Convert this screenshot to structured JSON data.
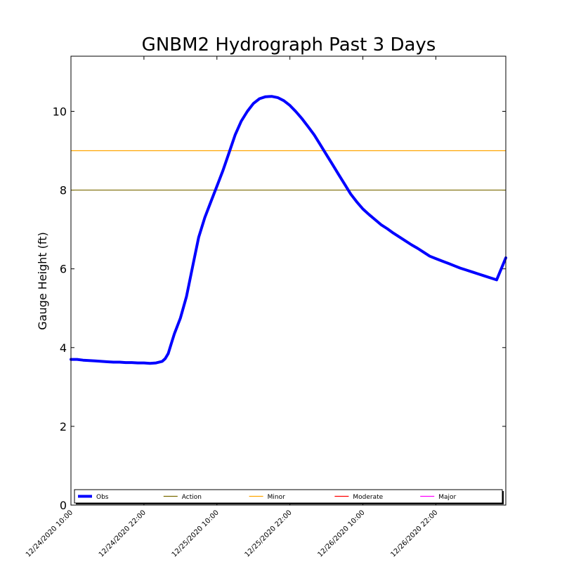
{
  "chart_data": {
    "type": "line",
    "title": "GNBM2 Hydrograph Past 3 Days",
    "xlabel": "",
    "ylabel": "Gauge Height (ft)",
    "ylim": [
      0,
      11.4
    ],
    "y_ticks": [
      "0",
      "2",
      "4",
      "6",
      "8",
      "10"
    ],
    "y_tick_values": [
      0,
      2,
      4,
      6,
      8,
      10
    ],
    "x_range_hours": [
      0,
      71.5
    ],
    "x_ticks": [
      "12/24/2020 10:00",
      "12/24/2020 22:00",
      "12/25/2020 10:00",
      "12/25/2020 22:00",
      "12/26/2020 10:00",
      "12/26/2020 22:00"
    ],
    "x_tick_hours": [
      0,
      12,
      24,
      36,
      48,
      60
    ],
    "grid": false,
    "legend_position": "bottom",
    "series": [
      {
        "name": "Obs",
        "color": "#0000ff",
        "x_hours": [
          0,
          1,
          2,
          3,
          4,
          5,
          6,
          7,
          8,
          9,
          10,
          11,
          12,
          13,
          14,
          15,
          15.5,
          16,
          16.5,
          17,
          18,
          19,
          20,
          21,
          22,
          23,
          24,
          25,
          26,
          27,
          28,
          29,
          30,
          31,
          32,
          33,
          34,
          35,
          36,
          37,
          38,
          39,
          40,
          41,
          42,
          43,
          44,
          45,
          46,
          47,
          48,
          49,
          50,
          51,
          52,
          53,
          54,
          55,
          56,
          57,
          58,
          59,
          60,
          61,
          62,
          63,
          64,
          65,
          66,
          67,
          68,
          69,
          70,
          71.5
        ],
        "values": [
          3.7,
          3.7,
          3.68,
          3.67,
          3.66,
          3.65,
          3.64,
          3.63,
          3.63,
          3.62,
          3.62,
          3.61,
          3.61,
          3.6,
          3.61,
          3.65,
          3.72,
          3.85,
          4.1,
          4.35,
          4.75,
          5.3,
          6.05,
          6.8,
          7.3,
          7.7,
          8.1,
          8.5,
          8.95,
          9.4,
          9.75,
          10.0,
          10.2,
          10.32,
          10.37,
          10.38,
          10.35,
          10.27,
          10.15,
          9.99,
          9.81,
          9.61,
          9.4,
          9.15,
          8.9,
          8.65,
          8.4,
          8.15,
          7.9,
          7.7,
          7.52,
          7.38,
          7.25,
          7.12,
          7.02,
          6.91,
          6.81,
          6.71,
          6.61,
          6.52,
          6.42,
          6.32,
          6.26,
          6.2,
          6.14,
          6.08,
          6.02,
          5.97,
          5.92,
          5.87,
          5.82,
          5.77,
          5.72,
          6.28
        ]
      },
      {
        "name": "Action",
        "color": "#7a6a00",
        "value": 8
      },
      {
        "name": "Minor",
        "color": "#ffa500",
        "value": 9
      },
      {
        "name": "Moderate",
        "color": "#ff0000"
      },
      {
        "name": "Major",
        "color": "#ff00ff"
      }
    ]
  }
}
